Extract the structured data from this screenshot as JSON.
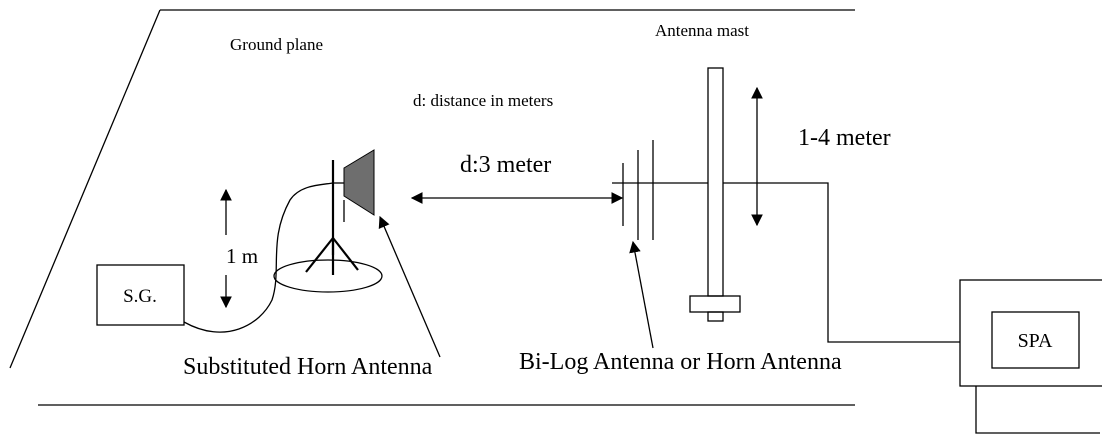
{
  "labels": {
    "ground_plane": "Ground plane",
    "antenna_mast": "Antenna mast",
    "distance_note": "d: distance in meters",
    "distance_value": "d:3 meter",
    "mast_height": "1-4 meter",
    "height_1m": "1 m",
    "signal_generator": "S.G.",
    "spectrum_analyzer": "SPA",
    "substituted_horn": "Substituted Horn Antenna",
    "receive_antenna": "Bi-Log Antenna or Horn Antenna"
  },
  "colors": {
    "line": "#000000",
    "horn_fill": "#6e6e6e",
    "background": "#ffffff"
  }
}
